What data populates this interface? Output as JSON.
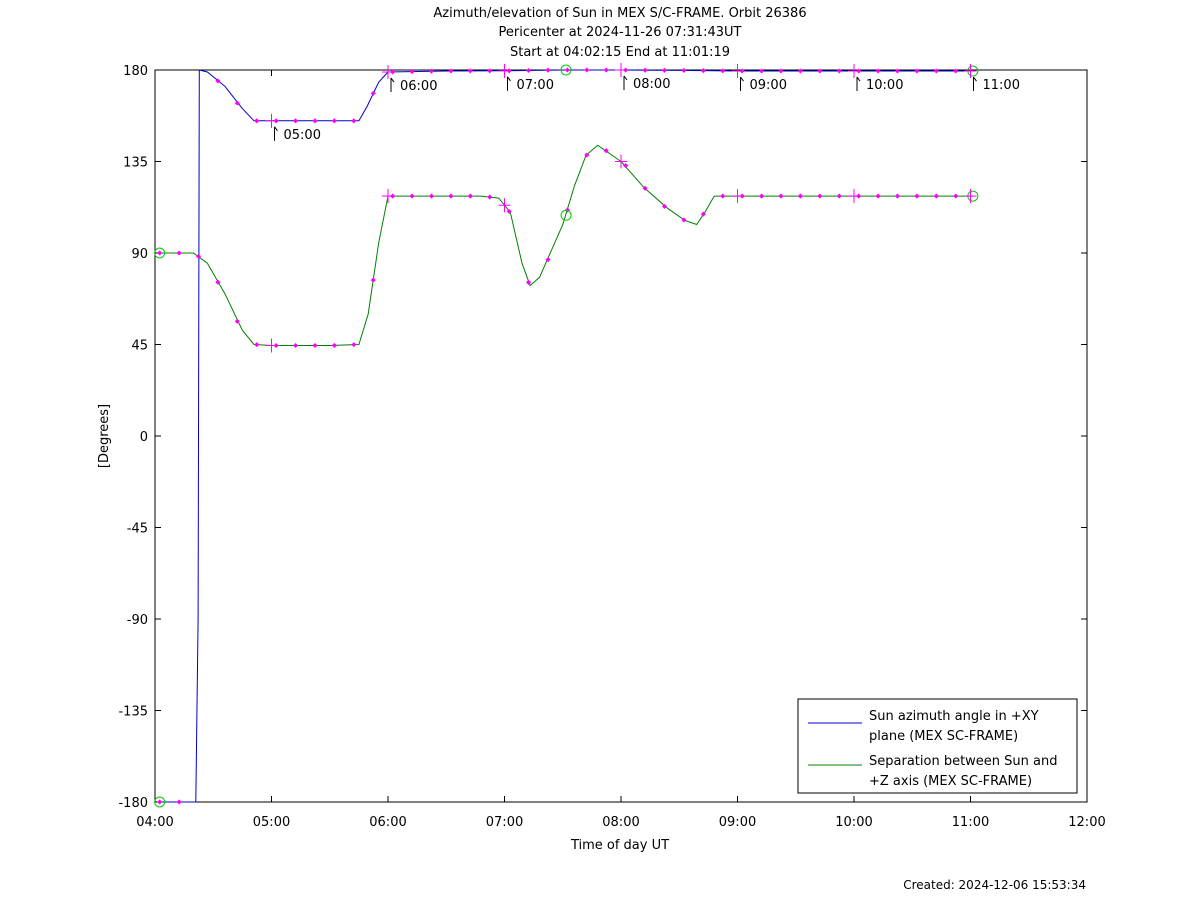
{
  "chart_data": {
    "type": "line",
    "title": "Azimuth/elevation of Sun in MEX S/C-FRAME.  Orbit 26386",
    "subtitle_1": "Pericenter at 2024-11-26 07:31:43UT",
    "subtitle_2": "Start at 04:02:15 End at 11:01:19",
    "xlabel": "Time of day UT",
    "ylabel": "[Degrees]",
    "created": "Created: 2024-12-06 15:53:34",
    "xlim_hours": [
      4,
      12
    ],
    "ylim": [
      -180,
      180
    ],
    "x_ticks": [
      "04:00",
      "05:00",
      "06:00",
      "07:00",
      "08:00",
      "09:00",
      "10:00",
      "11:00",
      "12:00"
    ],
    "y_ticks": [
      "180",
      "135",
      "90",
      "45",
      "0",
      "-45",
      "-90",
      "-135",
      "-180"
    ],
    "hour_annotations": [
      "05:00",
      "06:00",
      "07:00",
      "08:00",
      "09:00",
      "10:00",
      "11:00"
    ],
    "legend_position": "bottom-right",
    "series": [
      {
        "name": "Sun azimuth angle in +XY plane (MEX SC-FRAME)",
        "legend_lines": [
          "Sun azimuth angle in +XY",
          "plane (MEX SC-FRAME)"
        ],
        "color": "#0000cc",
        "points": [
          [
            4.04,
            -180
          ],
          [
            4.35,
            -180
          ],
          [
            4.37,
            -90
          ],
          [
            4.38,
            180
          ],
          [
            4.45,
            179
          ],
          [
            4.6,
            172
          ],
          [
            4.75,
            161
          ],
          [
            4.85,
            155
          ],
          [
            5.0,
            155
          ],
          [
            5.5,
            155
          ],
          [
            5.75,
            155
          ],
          [
            5.82,
            162
          ],
          [
            5.92,
            174
          ],
          [
            6.0,
            179
          ],
          [
            6.5,
            179.5
          ],
          [
            7.0,
            179.6
          ],
          [
            7.5,
            180
          ],
          [
            8.0,
            180
          ],
          [
            8.5,
            179.8
          ],
          [
            9.0,
            179.5
          ],
          [
            9.5,
            179.5
          ],
          [
            10.0,
            179.5
          ],
          [
            10.5,
            179.5
          ],
          [
            11.02,
            179.5
          ]
        ]
      },
      {
        "name": "Separation between Sun and +Z axis (MEX SC-FRAME)",
        "legend_lines": [
          "Separation between Sun and",
          "+Z axis (MEX SC-FRAME)"
        ],
        "color": "#008000",
        "points": [
          [
            4.04,
            90
          ],
          [
            4.33,
            90
          ],
          [
            4.45,
            85
          ],
          [
            4.6,
            70
          ],
          [
            4.75,
            52
          ],
          [
            4.85,
            45
          ],
          [
            5.0,
            44.5
          ],
          [
            5.5,
            44.5
          ],
          [
            5.75,
            45
          ],
          [
            5.83,
            60
          ],
          [
            5.92,
            95
          ],
          [
            6.0,
            118
          ],
          [
            6.5,
            118
          ],
          [
            6.8,
            118
          ],
          [
            6.95,
            117
          ],
          [
            7.05,
            110
          ],
          [
            7.15,
            85
          ],
          [
            7.22,
            74
          ],
          [
            7.3,
            78
          ],
          [
            7.5,
            104
          ],
          [
            7.6,
            123
          ],
          [
            7.7,
            138
          ],
          [
            7.8,
            143
          ],
          [
            8.0,
            135
          ],
          [
            8.2,
            122
          ],
          [
            8.4,
            112
          ],
          [
            8.55,
            106
          ],
          [
            8.65,
            104
          ],
          [
            8.72,
            110
          ],
          [
            8.8,
            118
          ],
          [
            9.0,
            118
          ],
          [
            9.5,
            118
          ],
          [
            10.0,
            118
          ],
          [
            10.5,
            118
          ],
          [
            11.02,
            118
          ]
        ]
      }
    ],
    "marker_color": "#ff00ff",
    "endpoint_marker_color": "#00cc00"
  }
}
